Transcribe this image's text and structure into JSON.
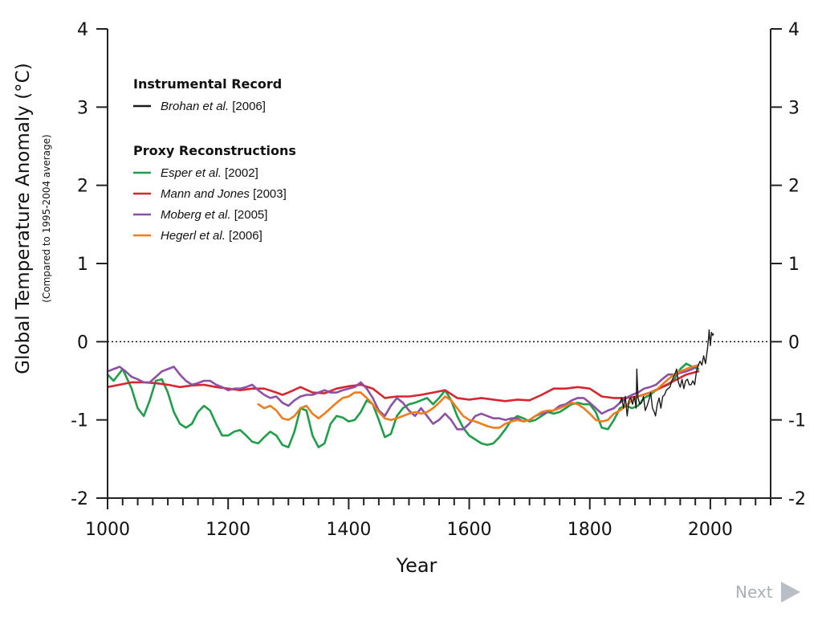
{
  "chart_data": {
    "type": "line",
    "xlabel": "Year",
    "ylabel": "Global Temperature Anomaly (°C)",
    "ylabel_sub": "(Compared to 1995-2004 average)",
    "xlim": [
      1000,
      2100
    ],
    "ylim": [
      -2,
      4
    ],
    "x_ticks": [
      1000,
      1200,
      1400,
      1600,
      1800,
      2000
    ],
    "x_tick_labels": [
      "1000",
      "1200",
      "1400",
      "1600",
      "1800",
      "2000"
    ],
    "y_ticks": [
      -2,
      -1,
      0,
      1,
      2,
      3,
      4
    ],
    "y_tick_labels": [
      "-2",
      "-1",
      "0",
      "1",
      "2",
      "3",
      "4"
    ],
    "reference_line": {
      "y": 0,
      "style": "dotted"
    },
    "legend": {
      "placement": "top-left",
      "groups": [
        {
          "heading": "Instrumental Record",
          "entries": [
            {
              "author": "Brohan et al.",
              "year": "[2006]",
              "color": "#1a1a1a"
            }
          ]
        },
        {
          "heading": "Proxy Reconstructions",
          "entries": [
            {
              "author": "Esper et al.",
              "year": "[2002]",
              "color": "#1f9e48"
            },
            {
              "author": "Mann and Jones",
              "year": "[2003]",
              "color": "#d7262f"
            },
            {
              "author": "Moberg et al.",
              "year": "[2005]",
              "color": "#8e4fa5"
            },
            {
              "author": "Hegerl et al.",
              "year": "[2006]",
              "color": "#f07c1b"
            }
          ]
        }
      ]
    },
    "series": [
      {
        "name": "Esper et al. [2002]",
        "color": "#1f9e48",
        "x": [
          1000,
          1010,
          1025,
          1040,
          1050,
          1060,
          1070,
          1080,
          1090,
          1100,
          1110,
          1120,
          1130,
          1140,
          1150,
          1160,
          1170,
          1180,
          1190,
          1200,
          1210,
          1220,
          1230,
          1240,
          1250,
          1260,
          1270,
          1280,
          1290,
          1300,
          1310,
          1320,
          1330,
          1340,
          1350,
          1360,
          1370,
          1380,
          1390,
          1400,
          1410,
          1420,
          1430,
          1440,
          1450,
          1460,
          1470,
          1480,
          1490,
          1500,
          1510,
          1520,
          1530,
          1540,
          1550,
          1560,
          1570,
          1580,
          1590,
          1600,
          1610,
          1620,
          1630,
          1640,
          1650,
          1660,
          1670,
          1680,
          1690,
          1700,
          1710,
          1720,
          1730,
          1740,
          1750,
          1760,
          1770,
          1780,
          1790,
          1800,
          1810,
          1820,
          1830,
          1840,
          1850,
          1860,
          1870,
          1880,
          1890,
          1900,
          1910,
          1920,
          1930,
          1940,
          1950,
          1960,
          1970,
          1980
        ],
        "y": [
          -0.42,
          -0.5,
          -0.35,
          -0.6,
          -0.85,
          -0.95,
          -0.75,
          -0.5,
          -0.48,
          -0.65,
          -0.9,
          -1.05,
          -1.1,
          -1.05,
          -0.9,
          -0.82,
          -0.88,
          -1.05,
          -1.2,
          -1.2,
          -1.15,
          -1.13,
          -1.2,
          -1.28,
          -1.3,
          -1.22,
          -1.15,
          -1.2,
          -1.32,
          -1.35,
          -1.15,
          -0.85,
          -0.88,
          -1.2,
          -1.35,
          -1.3,
          -1.05,
          -0.95,
          -0.97,
          -1.02,
          -1.0,
          -0.9,
          -0.75,
          -0.8,
          -1.0,
          -1.22,
          -1.18,
          -0.95,
          -0.85,
          -0.8,
          -0.78,
          -0.75,
          -0.72,
          -0.8,
          -0.72,
          -0.62,
          -0.75,
          -0.95,
          -1.1,
          -1.2,
          -1.25,
          -1.3,
          -1.32,
          -1.3,
          -1.22,
          -1.12,
          -1.0,
          -0.95,
          -0.98,
          -1.02,
          -1.0,
          -0.95,
          -0.9,
          -0.92,
          -0.9,
          -0.85,
          -0.8,
          -0.78,
          -0.8,
          -0.8,
          -0.9,
          -1.1,
          -1.12,
          -1.0,
          -0.85,
          -0.82,
          -0.85,
          -0.82,
          -0.72,
          -0.68,
          -0.62,
          -0.58,
          -0.55,
          -0.48,
          -0.35,
          -0.28,
          -0.32,
          -0.35
        ]
      },
      {
        "name": "Mann and Jones [2003]",
        "color": "#d7262f",
        "x": [
          1000,
          1020,
          1040,
          1060,
          1080,
          1100,
          1120,
          1140,
          1160,
          1180,
          1200,
          1220,
          1240,
          1260,
          1280,
          1290,
          1300,
          1320,
          1340,
          1360,
          1380,
          1400,
          1420,
          1440,
          1460,
          1480,
          1500,
          1520,
          1540,
          1560,
          1580,
          1600,
          1620,
          1640,
          1660,
          1680,
          1700,
          1720,
          1740,
          1760,
          1780,
          1800,
          1820,
          1840,
          1860,
          1880,
          1900,
          1920,
          1940,
          1960,
          1980
        ],
        "y": [
          -0.58,
          -0.55,
          -0.52,
          -0.52,
          -0.53,
          -0.55,
          -0.58,
          -0.56,
          -0.55,
          -0.58,
          -0.6,
          -0.62,
          -0.6,
          -0.6,
          -0.65,
          -0.68,
          -0.65,
          -0.58,
          -0.65,
          -0.66,
          -0.6,
          -0.57,
          -0.55,
          -0.6,
          -0.72,
          -0.7,
          -0.7,
          -0.68,
          -0.65,
          -0.62,
          -0.72,
          -0.74,
          -0.72,
          -0.74,
          -0.76,
          -0.74,
          -0.75,
          -0.68,
          -0.6,
          -0.6,
          -0.58,
          -0.6,
          -0.7,
          -0.72,
          -0.72,
          -0.7,
          -0.65,
          -0.58,
          -0.5,
          -0.42,
          -0.38
        ]
      },
      {
        "name": "Moberg et al. [2005]",
        "color": "#8e4fa5",
        "x": [
          1000,
          1010,
          1020,
          1030,
          1040,
          1050,
          1060,
          1070,
          1080,
          1090,
          1100,
          1110,
          1120,
          1130,
          1140,
          1150,
          1160,
          1170,
          1180,
          1190,
          1200,
          1210,
          1220,
          1230,
          1240,
          1250,
          1260,
          1270,
          1280,
          1290,
          1300,
          1310,
          1320,
          1330,
          1340,
          1350,
          1360,
          1370,
          1380,
          1390,
          1400,
          1410,
          1420,
          1430,
          1440,
          1450,
          1460,
          1470,
          1480,
          1490,
          1500,
          1510,
          1520,
          1530,
          1540,
          1550,
          1560,
          1570,
          1580,
          1590,
          1600,
          1610,
          1620,
          1630,
          1640,
          1650,
          1660,
          1670,
          1680,
          1690,
          1700,
          1710,
          1720,
          1730,
          1740,
          1750,
          1760,
          1770,
          1780,
          1790,
          1800,
          1810,
          1820,
          1830,
          1840,
          1850,
          1860,
          1870,
          1880,
          1890,
          1900,
          1910,
          1920,
          1930,
          1940,
          1950,
          1960,
          1970,
          1980
        ],
        "y": [
          -0.38,
          -0.35,
          -0.32,
          -0.38,
          -0.45,
          -0.48,
          -0.52,
          -0.52,
          -0.45,
          -0.38,
          -0.35,
          -0.32,
          -0.42,
          -0.5,
          -0.55,
          -0.53,
          -0.5,
          -0.5,
          -0.55,
          -0.58,
          -0.62,
          -0.6,
          -0.6,
          -0.58,
          -0.55,
          -0.62,
          -0.68,
          -0.72,
          -0.7,
          -0.78,
          -0.82,
          -0.75,
          -0.7,
          -0.68,
          -0.68,
          -0.65,
          -0.62,
          -0.65,
          -0.65,
          -0.62,
          -0.6,
          -0.58,
          -0.52,
          -0.6,
          -0.72,
          -0.88,
          -0.95,
          -0.82,
          -0.72,
          -0.78,
          -0.88,
          -0.95,
          -0.85,
          -0.95,
          -1.05,
          -1.0,
          -0.92,
          -1.0,
          -1.12,
          -1.12,
          -1.05,
          -0.95,
          -0.92,
          -0.95,
          -0.98,
          -0.98,
          -1.0,
          -0.98,
          -0.98,
          -1.02,
          -1.0,
          -0.95,
          -0.92,
          -0.9,
          -0.88,
          -0.82,
          -0.8,
          -0.75,
          -0.72,
          -0.72,
          -0.78,
          -0.85,
          -0.92,
          -0.88,
          -0.85,
          -0.78,
          -0.72,
          -0.68,
          -0.65,
          -0.6,
          -0.58,
          -0.55,
          -0.48,
          -0.42,
          -0.42,
          -0.4,
          -0.38,
          -0.35,
          -0.3
        ]
      },
      {
        "name": "Hegerl et al. [2006]",
        "color": "#f07c1b",
        "x": [
          1250,
          1260,
          1270,
          1280,
          1290,
          1300,
          1310,
          1320,
          1330,
          1340,
          1350,
          1360,
          1370,
          1380,
          1390,
          1400,
          1410,
          1420,
          1430,
          1440,
          1450,
          1460,
          1470,
          1480,
          1490,
          1500,
          1510,
          1520,
          1530,
          1540,
          1550,
          1560,
          1570,
          1580,
          1590,
          1600,
          1610,
          1620,
          1630,
          1640,
          1650,
          1660,
          1670,
          1680,
          1690,
          1700,
          1710,
          1720,
          1730,
          1740,
          1750,
          1760,
          1770,
          1780,
          1790,
          1800,
          1810,
          1820,
          1830,
          1840,
          1850,
          1860,
          1870,
          1880,
          1890,
          1900,
          1910,
          1920,
          1930,
          1940,
          1950,
          1960,
          1970,
          1980
        ],
        "y": [
          -0.8,
          -0.85,
          -0.82,
          -0.88,
          -0.98,
          -1.0,
          -0.95,
          -0.85,
          -0.82,
          -0.92,
          -0.98,
          -0.92,
          -0.85,
          -0.78,
          -0.72,
          -0.7,
          -0.65,
          -0.65,
          -0.72,
          -0.8,
          -0.9,
          -0.98,
          -1.0,
          -0.98,
          -0.95,
          -0.92,
          -0.9,
          -0.92,
          -0.9,
          -0.85,
          -0.78,
          -0.7,
          -0.75,
          -0.85,
          -0.95,
          -1.0,
          -1.02,
          -1.05,
          -1.08,
          -1.1,
          -1.1,
          -1.05,
          -1.02,
          -1.0,
          -1.02,
          -1.0,
          -0.95,
          -0.9,
          -0.88,
          -0.88,
          -0.85,
          -0.82,
          -0.78,
          -0.8,
          -0.85,
          -0.92,
          -1.0,
          -1.02,
          -1.0,
          -0.92,
          -0.88,
          -0.82,
          -0.75,
          -0.7,
          -0.68,
          -0.65,
          -0.62,
          -0.55,
          -0.48,
          -0.42,
          -0.38,
          -0.35,
          -0.32,
          -0.3
        ]
      },
      {
        "name": "Brohan et al. [2006]",
        "color": "#1a1a1a",
        "x": [
          1850,
          1853,
          1856,
          1859,
          1862,
          1865,
          1868,
          1871,
          1874,
          1877,
          1878,
          1880,
          1883,
          1886,
          1889,
          1892,
          1895,
          1898,
          1901,
          1904,
          1907,
          1909,
          1912,
          1915,
          1918,
          1921,
          1924,
          1927,
          1930,
          1933,
          1936,
          1939,
          1941,
          1944,
          1947,
          1950,
          1953,
          1956,
          1959,
          1962,
          1965,
          1968,
          1971,
          1974,
          1977,
          1980,
          1983,
          1986,
          1989,
          1992,
          1995,
          1997,
          1998,
          2000,
          2002,
          2004,
          2005
        ],
        "y": [
          -0.78,
          -0.72,
          -0.85,
          -0.7,
          -0.95,
          -0.75,
          -0.72,
          -0.8,
          -0.7,
          -0.85,
          -0.35,
          -0.72,
          -0.8,
          -0.78,
          -0.7,
          -0.88,
          -0.82,
          -0.75,
          -0.65,
          -0.85,
          -0.9,
          -0.95,
          -0.8,
          -0.72,
          -0.85,
          -0.7,
          -0.68,
          -0.62,
          -0.6,
          -0.58,
          -0.5,
          -0.45,
          -0.42,
          -0.35,
          -0.52,
          -0.58,
          -0.48,
          -0.6,
          -0.5,
          -0.48,
          -0.55,
          -0.55,
          -0.5,
          -0.55,
          -0.38,
          -0.3,
          -0.25,
          -0.3,
          -0.18,
          -0.28,
          -0.1,
          0.05,
          0.15,
          -0.05,
          0.12,
          0.08,
          0.1
        ]
      }
    ]
  },
  "nav": {
    "next_label": "Next"
  }
}
